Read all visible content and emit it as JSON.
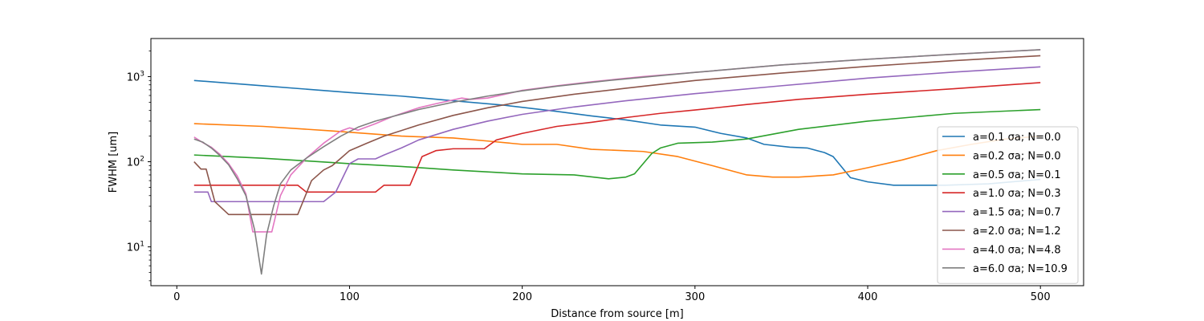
{
  "chart_data": {
    "type": "line",
    "xlabel": "Distance from source [m]",
    "ylabel": "FWHM [um]",
    "xlim": [
      -15,
      525
    ],
    "ylim": [
      3.5,
      2800
    ],
    "yscale": "log",
    "grid": false,
    "legend_placement": "lower-right",
    "x_ticks": [
      0,
      100,
      200,
      300,
      400,
      500
    ],
    "x_tick_labels": [
      "0",
      "100",
      "200",
      "300",
      "400",
      "500"
    ],
    "y_ticks": [
      10,
      100,
      1000
    ],
    "y_tick_labels": [
      "10^1",
      "10^2",
      "10^3"
    ],
    "series": [
      {
        "name": "a=0.1 σa; N=0.0",
        "color": "#1f77b4",
        "points": [
          [
            10,
            900
          ],
          [
            50,
            780
          ],
          [
            100,
            650
          ],
          [
            130,
            590
          ],
          [
            160,
            520
          ],
          [
            190,
            460
          ],
          [
            220,
            390
          ],
          [
            240,
            345
          ],
          [
            260,
            310
          ],
          [
            280,
            270
          ],
          [
            300,
            255
          ],
          [
            315,
            215
          ],
          [
            330,
            190
          ],
          [
            340,
            160
          ],
          [
            355,
            148
          ],
          [
            365,
            145
          ],
          [
            375,
            128
          ],
          [
            380,
            115
          ],
          [
            390,
            65
          ],
          [
            400,
            58
          ],
          [
            415,
            53
          ],
          [
            425,
            53
          ],
          [
            445,
            53
          ],
          [
            470,
            55
          ],
          [
            500,
            62
          ]
        ]
      },
      {
        "name": "a=0.2 σa; N=0.0",
        "color": "#ff7f0e",
        "points": [
          [
            10,
            280
          ],
          [
            50,
            260
          ],
          [
            90,
            230
          ],
          [
            130,
            200
          ],
          [
            160,
            190
          ],
          [
            180,
            175
          ],
          [
            200,
            160
          ],
          [
            220,
            160
          ],
          [
            240,
            140
          ],
          [
            270,
            132
          ],
          [
            290,
            115
          ],
          [
            310,
            90
          ],
          [
            330,
            70
          ],
          [
            345,
            66
          ],
          [
            360,
            66
          ],
          [
            380,
            70
          ],
          [
            400,
            85
          ],
          [
            420,
            105
          ],
          [
            440,
            135
          ],
          [
            460,
            160
          ],
          [
            480,
            185
          ],
          [
            500,
            200
          ]
        ]
      },
      {
        "name": "a=0.5 σa; N=0.1",
        "color": "#2ca02c",
        "points": [
          [
            10,
            120
          ],
          [
            50,
            110
          ],
          [
            100,
            95
          ],
          [
            130,
            88
          ],
          [
            160,
            80
          ],
          [
            200,
            72
          ],
          [
            230,
            70
          ],
          [
            250,
            63
          ],
          [
            260,
            66
          ],
          [
            265,
            72
          ],
          [
            275,
            125
          ],
          [
            280,
            145
          ],
          [
            290,
            165
          ],
          [
            310,
            170
          ],
          [
            330,
            185
          ],
          [
            360,
            240
          ],
          [
            400,
            300
          ],
          [
            450,
            370
          ],
          [
            500,
            410
          ]
        ]
      },
      {
        "name": "a=1.0 σa; N=0.3",
        "color": "#d62728",
        "points": [
          [
            10,
            53
          ],
          [
            70,
            53
          ],
          [
            75,
            44
          ],
          [
            115,
            44
          ],
          [
            120,
            53
          ],
          [
            135,
            53
          ],
          [
            142,
            115
          ],
          [
            150,
            135
          ],
          [
            160,
            142
          ],
          [
            178,
            142
          ],
          [
            185,
            180
          ],
          [
            200,
            215
          ],
          [
            220,
            260
          ],
          [
            240,
            290
          ],
          [
            260,
            330
          ],
          [
            280,
            370
          ],
          [
            300,
            405
          ],
          [
            330,
            470
          ],
          [
            360,
            540
          ],
          [
            400,
            620
          ],
          [
            450,
            720
          ],
          [
            500,
            850
          ]
        ]
      },
      {
        "name": "a=1.5 σa; N=0.7",
        "color": "#9467bd",
        "points": [
          [
            10,
            44
          ],
          [
            18,
            44
          ],
          [
            20,
            34
          ],
          [
            85,
            34
          ],
          [
            92,
            44
          ],
          [
            100,
            95
          ],
          [
            105,
            108
          ],
          [
            115,
            108
          ],
          [
            120,
            120
          ],
          [
            130,
            145
          ],
          [
            140,
            180
          ],
          [
            160,
            240
          ],
          [
            180,
            300
          ],
          [
            200,
            360
          ],
          [
            230,
            440
          ],
          [
            260,
            520
          ],
          [
            300,
            630
          ],
          [
            350,
            780
          ],
          [
            400,
            960
          ],
          [
            450,
            1130
          ],
          [
            500,
            1300
          ]
        ]
      },
      {
        "name": "a=2.0 σa; N=1.2",
        "color": "#8c564b",
        "points": [
          [
            10,
            100
          ],
          [
            14,
            82
          ],
          [
            17,
            82
          ],
          [
            22,
            34
          ],
          [
            30,
            24
          ],
          [
            70,
            24
          ],
          [
            78,
            60
          ],
          [
            85,
            80
          ],
          [
            90,
            90
          ],
          [
            95,
            110
          ],
          [
            100,
            135
          ],
          [
            110,
            165
          ],
          [
            120,
            200
          ],
          [
            140,
            270
          ],
          [
            160,
            350
          ],
          [
            180,
            430
          ],
          [
            200,
            510
          ],
          [
            230,
            620
          ],
          [
            260,
            730
          ],
          [
            300,
            900
          ],
          [
            350,
            1100
          ],
          [
            400,
            1320
          ],
          [
            450,
            1540
          ],
          [
            500,
            1760
          ]
        ]
      },
      {
        "name": "a=4.0 σa; N=4.8",
        "color": "#e377c2",
        "points": [
          [
            10,
            195
          ],
          [
            15,
            168
          ],
          [
            20,
            148
          ],
          [
            25,
            122
          ],
          [
            30,
            95
          ],
          [
            35,
            68
          ],
          [
            40,
            42
          ],
          [
            44,
            15
          ],
          [
            55,
            15
          ],
          [
            60,
            40
          ],
          [
            66,
            70
          ],
          [
            75,
            110
          ],
          [
            85,
            165
          ],
          [
            95,
            230
          ],
          [
            100,
            250
          ],
          [
            105,
            235
          ],
          [
            115,
            280
          ],
          [
            125,
            340
          ],
          [
            140,
            430
          ],
          [
            150,
            480
          ],
          [
            165,
            560
          ],
          [
            170,
            540
          ],
          [
            180,
            560
          ],
          [
            190,
            620
          ],
          [
            200,
            690
          ],
          [
            220,
            780
          ],
          [
            240,
            870
          ],
          [
            270,
            1000
          ],
          [
            300,
            1120
          ],
          [
            350,
            1370
          ],
          [
            400,
            1600
          ],
          [
            450,
            1830
          ],
          [
            500,
            2070
          ]
        ]
      },
      {
        "name": "a=6.0 σa; N=10.9",
        "color": "#7f7f7f",
        "points": [
          [
            10,
            185
          ],
          [
            15,
            170
          ],
          [
            20,
            145
          ],
          [
            25,
            118
          ],
          [
            30,
            92
          ],
          [
            35,
            63
          ],
          [
            40,
            40
          ],
          [
            45,
            16
          ],
          [
            49,
            4.8
          ],
          [
            52,
            14
          ],
          [
            56,
            30
          ],
          [
            60,
            55
          ],
          [
            66,
            80
          ],
          [
            75,
            110
          ],
          [
            85,
            150
          ],
          [
            95,
            200
          ],
          [
            105,
            255
          ],
          [
            115,
            300
          ],
          [
            125,
            340
          ],
          [
            140,
            410
          ],
          [
            160,
            500
          ],
          [
            180,
            590
          ],
          [
            200,
            680
          ],
          [
            220,
            770
          ],
          [
            250,
            900
          ],
          [
            300,
            1120
          ],
          [
            350,
            1370
          ],
          [
            400,
            1600
          ],
          [
            450,
            1830
          ],
          [
            500,
            2070
          ]
        ]
      }
    ]
  }
}
